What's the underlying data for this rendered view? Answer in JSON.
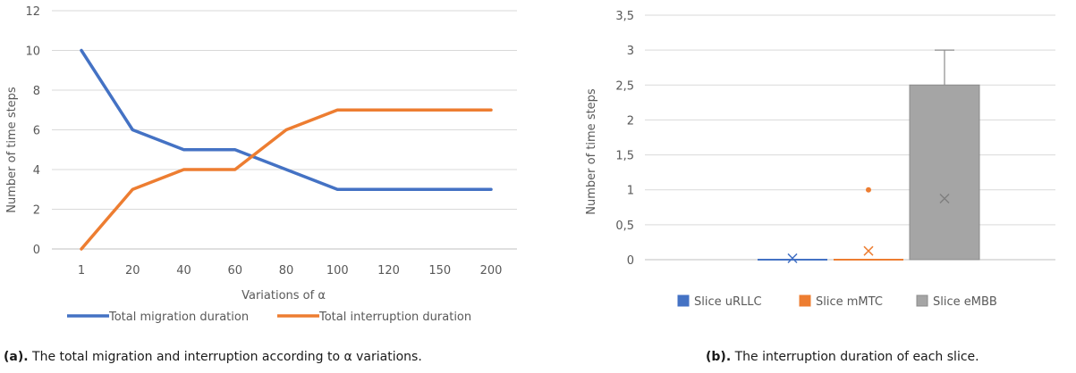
{
  "chart_data": [
    {
      "type": "line",
      "xlabel": "Variations of α",
      "ylabel": "Number of time steps",
      "categories": [
        "1",
        "20",
        "40",
        "60",
        "80",
        "100",
        "120",
        "150",
        "200"
      ],
      "ylim": [
        0,
        12
      ],
      "yticks": [
        "0",
        "2",
        "4",
        "6",
        "8",
        "10",
        "12"
      ],
      "grid": true,
      "legend_position": "bottom",
      "series": [
        {
          "name": "Total migration duration",
          "color": "#4472C4",
          "values": [
            10,
            6,
            5,
            5,
            4,
            3,
            3,
            3,
            3
          ]
        },
        {
          "name": "Total interruption duration",
          "color": "#ED7D31",
          "values": [
            0,
            3,
            4,
            4,
            6,
            7,
            7,
            7,
            7
          ]
        }
      ],
      "caption_label": "(a).",
      "caption_text": " The total migration and interruption according to α variations."
    },
    {
      "type": "box",
      "ylabel": "Number of time steps",
      "ylim": [
        0,
        3.5
      ],
      "yticks": [
        "0",
        "0,5",
        "1",
        "1,5",
        "2",
        "2,5",
        "3",
        "3,5"
      ],
      "grid": true,
      "legend_position": "bottom",
      "series": [
        {
          "name": "Slice uRLLC",
          "color": "#4472C4",
          "min": 0,
          "q1": 0,
          "median": 0,
          "q3": 0,
          "max": 0,
          "mean": 0.02,
          "outliers": []
        },
        {
          "name": "Slice mMTC",
          "color": "#ED7D31",
          "min": 0,
          "q1": 0,
          "median": 0,
          "q3": 0,
          "max": 0,
          "mean": 0.125,
          "outliers": [
            1
          ]
        },
        {
          "name": "Slice eMBB",
          "color": "#A5A5A5",
          "min": 0,
          "q1": 0,
          "median": 0,
          "q3": 2.5,
          "max": 3,
          "mean": 0.875,
          "outliers": []
        }
      ],
      "caption_label": "(b).",
      "caption_text": " The interruption duration of each slice."
    }
  ]
}
